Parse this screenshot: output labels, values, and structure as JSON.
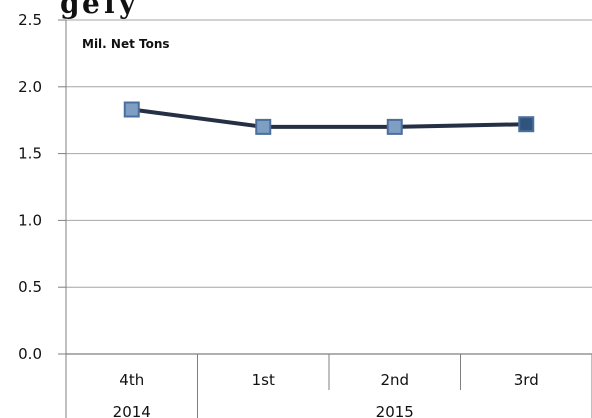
{
  "chart_data": {
    "type": "line",
    "title": "",
    "xlabel": "",
    "ylabel": "",
    "unit_label": "Mil. Net Tons",
    "categories": [
      "4th",
      "1st",
      "2nd",
      "3rd"
    ],
    "category_groups": [
      {
        "label": "2014",
        "span": 1
      },
      {
        "label": "2015",
        "span": 3
      }
    ],
    "series": [
      {
        "values": [
          1.83,
          1.7,
          1.7,
          1.72
        ]
      }
    ],
    "ylim": [
      0,
      2.5
    ],
    "yticks": [
      "0.0",
      "0.5",
      "1.0",
      "1.5",
      "2.0",
      "2.5"
    ],
    "grid": true,
    "legend": "none",
    "colors": {
      "line": "#253044",
      "marker_fill": "#7e9ec4",
      "marker_stroke": "#4a6f9c",
      "grid": "#a6a6a6",
      "axis": "#7f7f7f"
    }
  }
}
